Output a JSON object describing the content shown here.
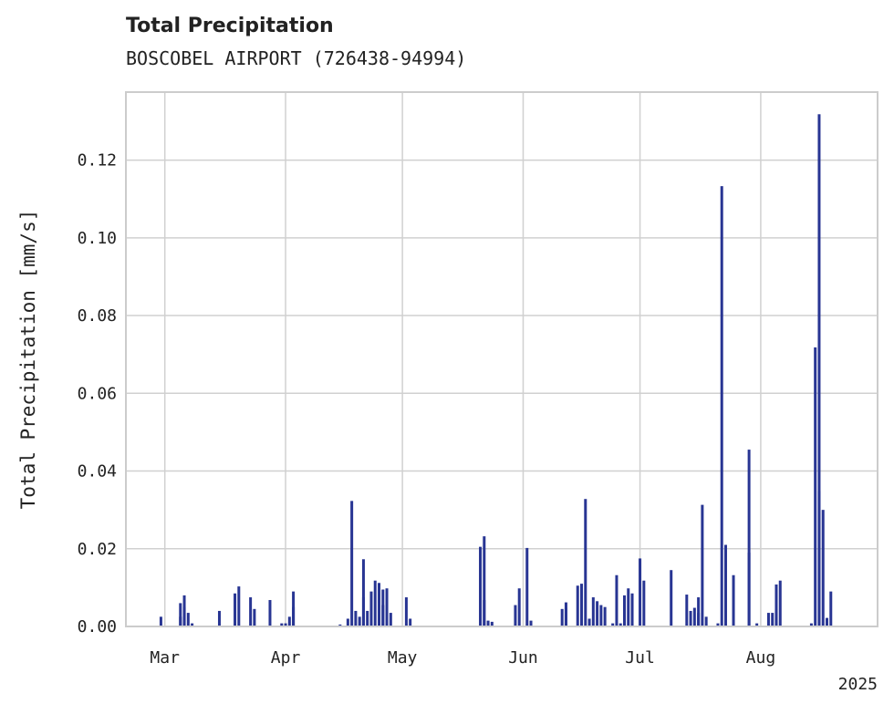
{
  "chart_data": {
    "type": "bar",
    "title": "Total Precipitation",
    "subtitle": "BOSCOBEL AIRPORT (726438-94994)",
    "ylabel": "Total Precipitation [mm/s]",
    "xlabel": "",
    "year_label": "2025",
    "xlim": [
      "2025-02-19",
      "2025-08-31"
    ],
    "ylim": [
      0,
      0.1375
    ],
    "yticks": [
      0.0,
      0.02,
      0.04,
      0.06,
      0.08,
      0.1,
      0.12
    ],
    "ytick_labels": [
      "0.00",
      "0.02",
      "0.04",
      "0.06",
      "0.08",
      "0.10",
      "0.12"
    ],
    "xticks": [
      {
        "date": "2025-03-01",
        "label": "Mar"
      },
      {
        "date": "2025-04-01",
        "label": "Apr"
      },
      {
        "date": "2025-05-01",
        "label": "May"
      },
      {
        "date": "2025-06-01",
        "label": "Jun"
      },
      {
        "date": "2025-07-01",
        "label": "Jul"
      },
      {
        "date": "2025-08-01",
        "label": "Aug"
      }
    ],
    "grid": true,
    "series_color": "#283593",
    "points": [
      [
        "2025-02-28",
        0.0025
      ],
      [
        "2025-03-05",
        0.0025
      ],
      [
        "2025-03-05",
        0.006
      ],
      [
        "2025-03-06",
        0.008
      ],
      [
        "2025-03-06",
        0.005
      ],
      [
        "2025-03-07",
        0.0035
      ],
      [
        "2025-03-08",
        0.0008
      ],
      [
        "2025-03-15",
        0.004
      ],
      [
        "2025-03-19",
        0.0085
      ],
      [
        "2025-03-20",
        0.0103
      ],
      [
        "2025-03-23",
        0.0075
      ],
      [
        "2025-03-24",
        0.0045
      ],
      [
        "2025-03-28",
        0.0068
      ],
      [
        "2025-03-31",
        0.0008
      ],
      [
        "2025-04-01",
        0.0008
      ],
      [
        "2025-04-02",
        0.0025
      ],
      [
        "2025-04-03",
        0.005
      ],
      [
        "2025-04-03",
        0.009
      ],
      [
        "2025-04-15",
        0.0005
      ],
      [
        "2025-04-17",
        0.002
      ],
      [
        "2025-04-18",
        0.0323
      ],
      [
        "2025-04-19",
        0.004
      ],
      [
        "2025-04-20",
        0.0025
      ],
      [
        "2025-04-21",
        0.0075
      ],
      [
        "2025-04-21",
        0.0173
      ],
      [
        "2025-04-22",
        0.004
      ],
      [
        "2025-04-23",
        0.009
      ],
      [
        "2025-04-24",
        0.0118
      ],
      [
        "2025-04-25",
        0.0112
      ],
      [
        "2025-04-26",
        0.0095
      ],
      [
        "2025-04-26",
        0.0055
      ],
      [
        "2025-04-27",
        0.0098
      ],
      [
        "2025-04-28",
        0.0035
      ],
      [
        "2025-05-02",
        0.0075
      ],
      [
        "2025-05-03",
        0.002
      ],
      [
        "2025-05-21",
        0.0205
      ],
      [
        "2025-05-22",
        0.0232
      ],
      [
        "2025-05-22",
        0.0068
      ],
      [
        "2025-05-23",
        0.0015
      ],
      [
        "2025-05-24",
        0.0012
      ],
      [
        "2025-05-30",
        0.0055
      ],
      [
        "2025-05-31",
        0.0098
      ],
      [
        "2025-06-02",
        0.0202
      ],
      [
        "2025-06-03",
        0.0015
      ],
      [
        "2025-06-11",
        0.0045
      ],
      [
        "2025-06-12",
        0.0062
      ],
      [
        "2025-06-12",
        0.0048
      ],
      [
        "2025-06-15",
        0.0105
      ],
      [
        "2025-06-16",
        0.011
      ],
      [
        "2025-06-17",
        0.0328
      ],
      [
        "2025-06-18",
        0.002
      ],
      [
        "2025-06-19",
        0.0075
      ],
      [
        "2025-06-20",
        0.0065
      ],
      [
        "2025-06-21",
        0.0055
      ],
      [
        "2025-06-22",
        0.005
      ],
      [
        "2025-06-24",
        0.0008
      ],
      [
        "2025-06-25",
        0.0132
      ],
      [
        "2025-06-26",
        0.0008
      ],
      [
        "2025-06-27",
        0.008
      ],
      [
        "2025-06-28",
        0.0098
      ],
      [
        "2025-06-29",
        0.0085
      ],
      [
        "2025-07-01",
        0.0175
      ],
      [
        "2025-07-02",
        0.0118
      ],
      [
        "2025-07-09",
        0.0145
      ],
      [
        "2025-07-13",
        0.0082
      ],
      [
        "2025-07-14",
        0.004
      ],
      [
        "2025-07-15",
        0.0048
      ],
      [
        "2025-07-16",
        0.0035
      ],
      [
        "2025-07-16",
        0.0075
      ],
      [
        "2025-07-17",
        0.0313
      ],
      [
        "2025-07-18",
        0.0025
      ],
      [
        "2025-07-21",
        0.0008
      ],
      [
        "2025-07-22",
        0.1133
      ],
      [
        "2025-07-23",
        0.021
      ],
      [
        "2025-07-25",
        0.0132
      ],
      [
        "2025-07-29",
        0.019
      ],
      [
        "2025-07-29",
        0.0455
      ],
      [
        "2025-07-31",
        0.0008
      ],
      [
        "2025-08-03",
        0.0035
      ],
      [
        "2025-08-04",
        0.0035
      ],
      [
        "2025-08-05",
        0.0045
      ],
      [
        "2025-08-05",
        0.0108
      ],
      [
        "2025-08-06",
        0.0118
      ],
      [
        "2025-08-14",
        0.0008
      ],
      [
        "2025-08-15",
        0.0718
      ],
      [
        "2025-08-16",
        0.1318
      ],
      [
        "2025-08-16",
        0.0348
      ],
      [
        "2025-08-17",
        0.03
      ],
      [
        "2025-08-18",
        0.0022
      ],
      [
        "2025-08-19",
        0.009
      ]
    ]
  }
}
